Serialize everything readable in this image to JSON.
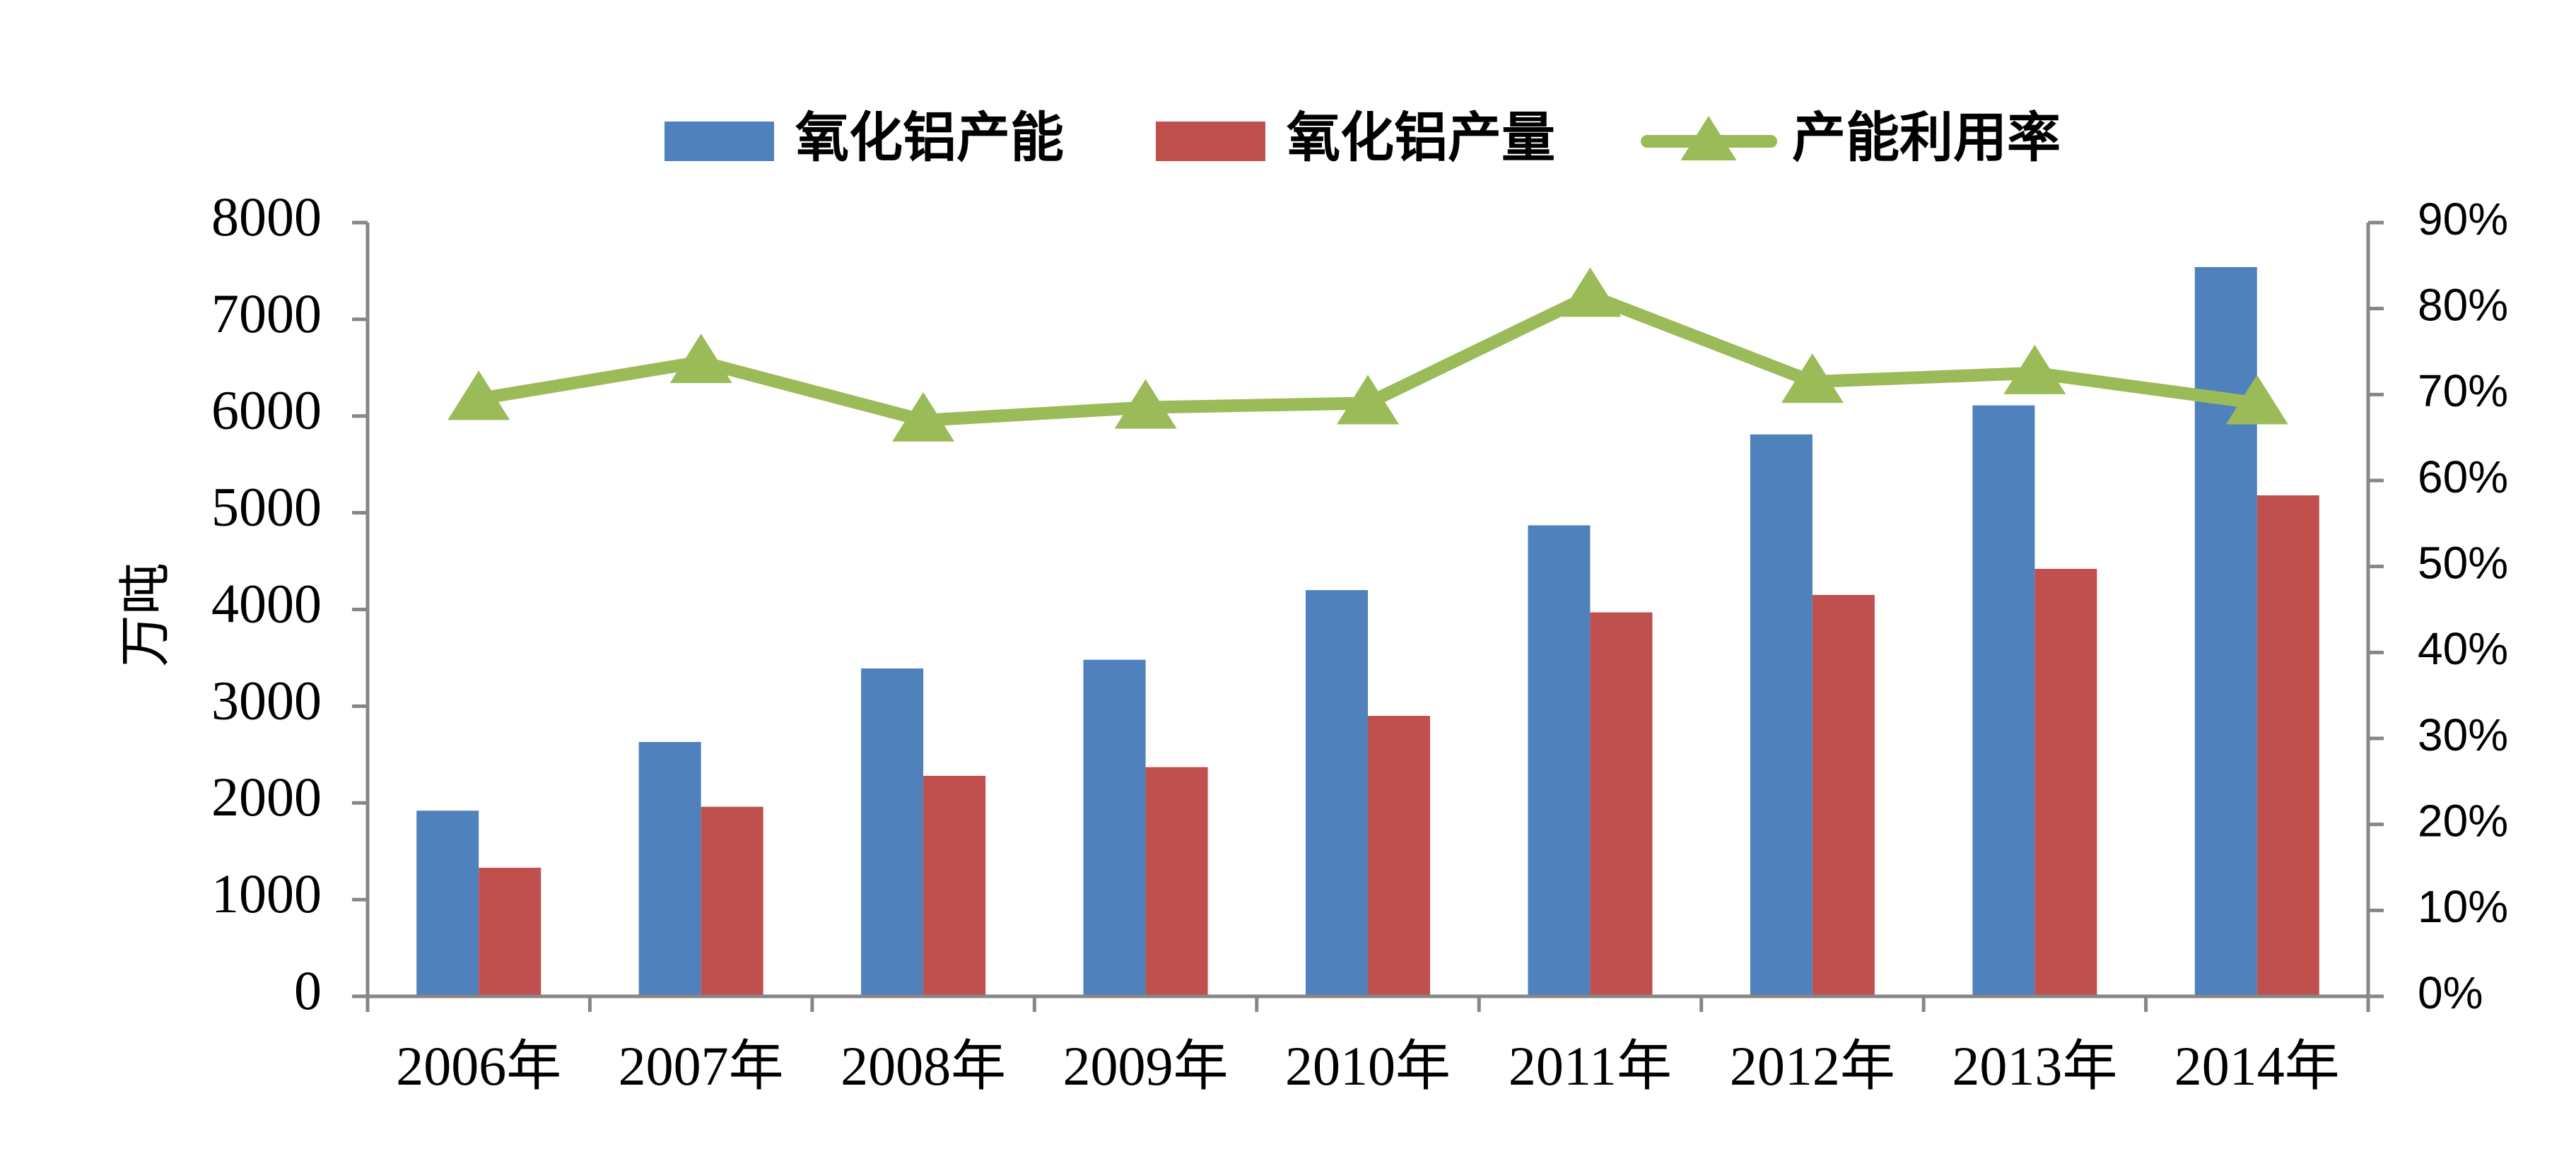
{
  "chart_data": {
    "type": "bar",
    "categories": [
      "2006年",
      "2007年",
      "2008年",
      "2009年",
      "2010年",
      "2011年",
      "2012年",
      "2013年",
      "2014年"
    ],
    "series": [
      {
        "name": "氧化铝产能",
        "type": "bar",
        "axis": "left",
        "color": "#4F81BD",
        "values": [
          1920,
          2630,
          3390,
          3480,
          4200,
          4870,
          5810,
          6110,
          7540
        ]
      },
      {
        "name": "氧化铝产量",
        "type": "bar",
        "axis": "left",
        "color": "#C0504D",
        "values": [
          1330,
          1960,
          2280,
          2370,
          2900,
          3970,
          4150,
          4420,
          5180
        ]
      },
      {
        "name": "产能利用率",
        "type": "line",
        "axis": "right",
        "color": "#9BBB59",
        "marker": "triangle",
        "values": [
          0.695,
          0.738,
          0.67,
          0.685,
          0.69,
          0.815,
          0.715,
          0.725,
          0.69
        ]
      }
    ],
    "ylabel": "万吨",
    "ylim": [
      0,
      8000
    ],
    "y_ticks": [
      "0",
      "1000",
      "2000",
      "3000",
      "4000",
      "5000",
      "6000",
      "7000",
      "8000"
    ],
    "y2lim": [
      0,
      0.9
    ],
    "y2_ticks": [
      "0%",
      "10%",
      "20%",
      "30%",
      "40%",
      "50%",
      "60%",
      "70%",
      "80%",
      "90%"
    ],
    "legend_position": "top",
    "grid": false
  }
}
